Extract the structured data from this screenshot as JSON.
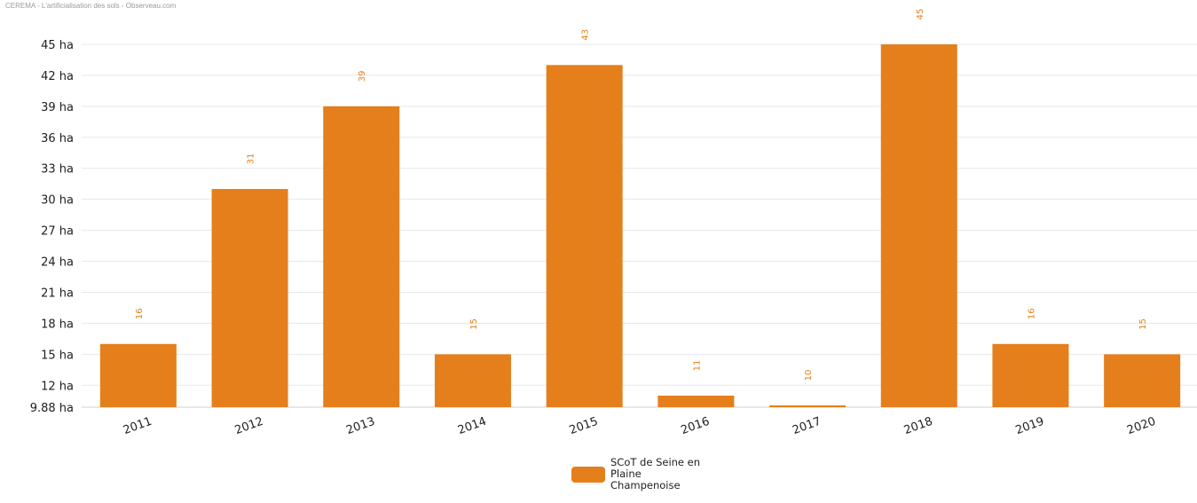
{
  "source": "CEREMA - L'artificialisation des sols - Observeau.com",
  "colors": {
    "bar": "#e47f1b",
    "data_label": "#e47f1b",
    "grid": "#e8e8e8"
  },
  "chart_data": {
    "type": "bar",
    "categories": [
      "2011",
      "2012",
      "2013",
      "2014",
      "2015",
      "2016",
      "2017",
      "2018",
      "2019",
      "2020"
    ],
    "series": [
      {
        "name": "SCoT de Seine en Plaine Champenoise",
        "values": [
          16,
          31,
          39,
          15,
          43,
          11,
          10,
          45,
          16,
          15
        ],
        "data_labels": [
          "16",
          "31",
          "39",
          "15",
          "43",
          "11",
          "10",
          "45",
          "16",
          "15"
        ]
      }
    ],
    "ylim": [
      9.88,
      45
    ],
    "y_ticks": [
      9.88,
      12,
      15,
      18,
      21,
      24,
      27,
      30,
      33,
      36,
      39,
      42,
      45
    ],
    "y_tick_labels": [
      "9.88 ha",
      "12 ha",
      "15 ha",
      "18 ha",
      "21 ha",
      "24 ha",
      "27 ha",
      "30 ha",
      "33 ha",
      "36 ha",
      "39 ha",
      "42 ha",
      "45 ha"
    ],
    "title": "",
    "xlabel": "",
    "ylabel": "",
    "grid": true,
    "legend_position": "bottom-center"
  }
}
